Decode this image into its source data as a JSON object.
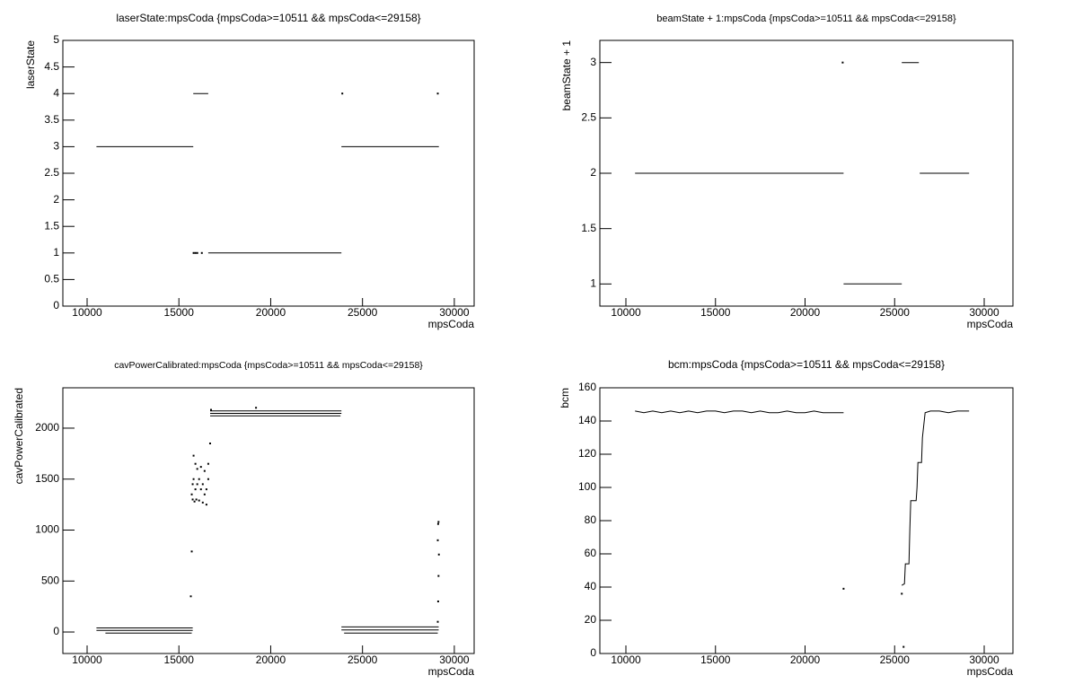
{
  "chart_data": [
    {
      "type": "scatter",
      "title": "laserState:mpsCoda {mpsCoda>=10511 && mpsCoda<=29158}",
      "x_label": "mpsCoda",
      "y_label": "laserState",
      "xlim": [
        8680,
        31080
      ],
      "xticks": [
        10000,
        15000,
        20000,
        25000,
        30000
      ],
      "ylim": [
        0,
        5
      ],
      "yticks": [
        0,
        0.5,
        1,
        1.5,
        2,
        2.5,
        3,
        3.5,
        4,
        4.5,
        5
      ],
      "series": [
        {
          "mode": "line",
          "x": [
            10511,
            15780,
            null,
            15780,
            16600,
            null,
            16600,
            23850,
            null,
            23850,
            29158
          ],
          "values": [
            3,
            3,
            null,
            4,
            4,
            null,
            1,
            1,
            null,
            3,
            3
          ]
        },
        {
          "mode": "points",
          "x": [
            15800,
            15900,
            16000,
            16250,
            23900,
            29100
          ],
          "values": [
            1,
            1,
            1,
            1,
            4,
            4
          ]
        }
      ]
    },
    {
      "type": "scatter",
      "title": "beamState + 1:mpsCoda {mpsCoda>=10511 && mpsCoda<=29158}",
      "x_label": "mpsCoda",
      "y_label": "beamState + 1",
      "xlim": [
        8546,
        31604
      ],
      "xticks": [
        10000,
        15000,
        20000,
        25000,
        30000
      ],
      "ylim": [
        0.8,
        3.2
      ],
      "yticks": [
        1,
        1.5,
        2,
        2.5,
        3
      ],
      "series": [
        {
          "mode": "line",
          "x": [
            10511,
            22150,
            null,
            22150,
            25400,
            null,
            25400,
            26350,
            null,
            26400,
            29158
          ],
          "values": [
            2,
            2,
            null,
            1,
            1,
            null,
            3,
            3,
            null,
            2,
            2
          ]
        },
        {
          "mode": "points",
          "x": [
            22100
          ],
          "values": [
            3
          ]
        }
      ]
    },
    {
      "type": "scatter",
      "title": "cavPowerCalibrated:mpsCoda {mpsCoda>=10511 && mpsCoda<=29158}",
      "x_label": "mpsCoda",
      "y_label": "cavPowerCalibrated",
      "xlim": [
        8680,
        31080
      ],
      "xticks": [
        10000,
        15000,
        20000,
        25000,
        30000
      ],
      "ylim": [
        -211,
        2396
      ],
      "yticks": [
        0,
        500,
        1000,
        1500,
        2000
      ],
      "series": [
        {
          "mode": "line",
          "x": [
            10511,
            15750,
            null,
            10511,
            15750,
            null,
            16700,
            23850,
            null,
            16700,
            23850,
            null,
            23850,
            29150,
            null,
            23850,
            29150
          ],
          "values": [
            40,
            40,
            null,
            15,
            15,
            null,
            2170,
            2170,
            null,
            2145,
            2145,
            null,
            50,
            50,
            null,
            20,
            20
          ]
        },
        {
          "mode": "line",
          "x": [
            11000,
            15700,
            null,
            16700,
            23800,
            null,
            24000,
            29100
          ],
          "values": [
            -10,
            -10,
            null,
            2120,
            2120,
            null,
            -10,
            -10
          ]
        },
        {
          "mode": "points",
          "x": [
            15700,
            15750,
            15800,
            15850,
            15900,
            15950,
            16000,
            16100,
            16200,
            16300,
            16400,
            16500,
            16600,
            16700,
            15750,
            15800,
            15900,
            16000,
            16100,
            16200,
            16300,
            16400,
            16500,
            16600,
            15650,
            15700,
            16750,
            19200,
            29100,
            29120,
            29140,
            29160,
            29100,
            29120,
            29140
          ],
          "values": [
            790,
            1300,
            1730,
            1280,
            1650,
            1300,
            1600,
            1290,
            1620,
            1270,
            1580,
            1250,
            1650,
            1850,
            1450,
            1500,
            1400,
            1450,
            1500,
            1400,
            1450,
            1350,
            1400,
            1500,
            350,
            1350,
            2180,
            2200,
            100,
            300,
            550,
            760,
            900,
            1060,
            1080
          ]
        }
      ]
    },
    {
      "type": "scatter",
      "title": "bcm:mpsCoda {mpsCoda>=10511 && mpsCoda<=29158}",
      "x_label": "mpsCoda",
      "y_label": "bcm",
      "xlim": [
        8546,
        31604
      ],
      "xticks": [
        10000,
        15000,
        20000,
        25000,
        30000
      ],
      "ylim": [
        0,
        160
      ],
      "yticks": [
        0,
        20,
        40,
        60,
        80,
        100,
        120,
        140,
        160
      ],
      "series": [
        {
          "mode": "line",
          "x": [
            10511,
            11000,
            11500,
            12000,
            12500,
            13000,
            13500,
            14000,
            14500,
            15000,
            15500,
            16000,
            16500,
            17000,
            17500,
            18000,
            18500,
            19000,
            19500,
            20000,
            20500,
            21000,
            21500,
            22150
          ],
          "values": [
            146,
            145,
            146,
            145,
            146,
            145,
            146,
            145,
            146,
            146,
            145,
            146,
            146,
            145,
            146,
            145,
            145,
            146,
            145,
            145,
            146,
            145,
            145,
            145
          ]
        },
        {
          "mode": "line",
          "x": [
            25400,
            25550,
            25600,
            25800,
            25850,
            25900,
            26200,
            26250,
            26300,
            26500,
            26550,
            26700,
            27000,
            27500,
            28000,
            28500,
            29158
          ],
          "values": [
            41,
            42,
            54,
            54,
            75,
            92,
            92,
            100,
            115,
            115,
            130,
            145,
            146,
            146,
            145,
            146,
            146
          ]
        },
        {
          "mode": "points",
          "x": [
            22150,
            25400,
            25500
          ],
          "values": [
            39,
            36,
            4
          ]
        }
      ]
    }
  ]
}
